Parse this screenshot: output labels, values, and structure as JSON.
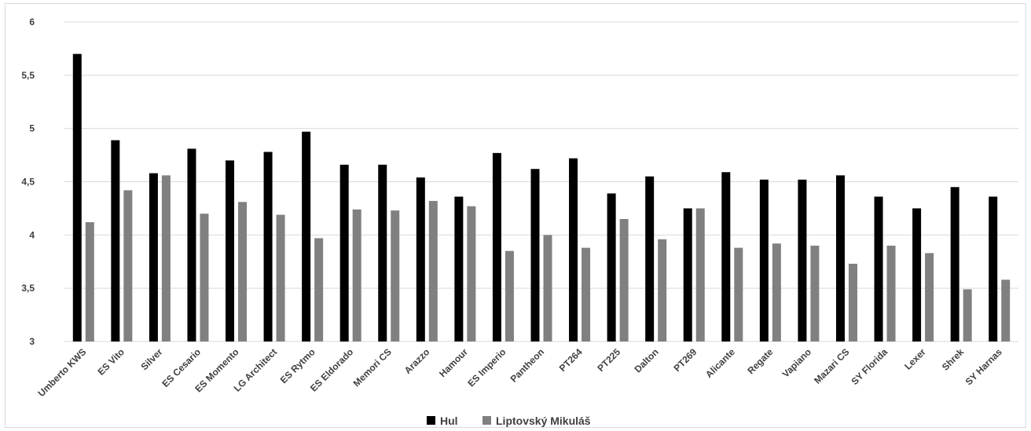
{
  "chart_data": {
    "type": "bar",
    "title": "",
    "xlabel": "",
    "ylabel": "",
    "ylim": [
      3,
      6
    ],
    "yticks": [
      "3",
      "3,5",
      "4",
      "4,5",
      "5",
      "5,5",
      "6"
    ],
    "ytick_values": [
      3,
      3.5,
      4,
      4.5,
      5,
      5.5,
      6
    ],
    "grid": true,
    "legend_position": "bottom",
    "categories": [
      "Umberto KWS",
      "ES Vito",
      "Silver",
      "ES Cesario",
      "ES Momento",
      "LG Architect",
      "ES Rytmo",
      "ES Eldorado",
      "Memori CS",
      "Arazzo",
      "Hamour",
      "ES Imperio",
      "Pantheon",
      "PT264",
      "PT225",
      "Dalton",
      "PT269",
      "Alicante",
      "Regate",
      "Vapiano",
      "Mazari CS",
      "SY Florida",
      "Lexer",
      "Shrek",
      "SY Harnas"
    ],
    "series": [
      {
        "name": "Hul",
        "color": "#000000",
        "values": [
          5.7,
          4.89,
          4.58,
          4.81,
          4.7,
          4.78,
          4.97,
          4.66,
          4.66,
          4.54,
          4.36,
          4.77,
          4.62,
          4.72,
          4.39,
          4.55,
          4.25,
          4.59,
          4.52,
          4.52,
          4.56,
          4.36,
          4.25,
          4.45,
          4.36
        ]
      },
      {
        "name": "Liptovský Mikuláš",
        "color": "#808080",
        "values": [
          4.12,
          4.42,
          4.56,
          4.2,
          4.31,
          4.19,
          3.97,
          4.24,
          4.23,
          4.32,
          4.27,
          3.85,
          4.0,
          3.88,
          4.15,
          3.96,
          4.25,
          3.88,
          3.92,
          3.9,
          3.73,
          3.9,
          3.83,
          3.49,
          3.58
        ]
      }
    ]
  },
  "colors": {
    "gridline": "#d9d9d9",
    "text": "#404040"
  }
}
